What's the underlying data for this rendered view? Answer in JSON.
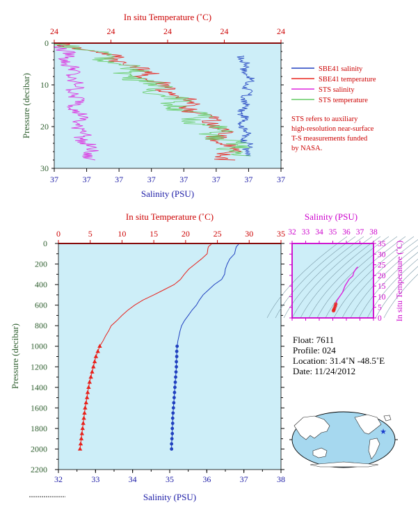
{
  "colors": {
    "panel_bg": "#cdeef8",
    "temperature": "#e8201a",
    "salinity": "#1f3fbf",
    "sts_salinity": "#dd22dd",
    "sts_temperature": "#66cc66",
    "temp_axis": "#cc0000",
    "sal_axis": "#1a1aa6",
    "pressure_axis": "#2e5e2e",
    "ts_axis": "#cc00cc"
  },
  "chart_data": [
    {
      "type": "line",
      "panel": "near-surface profile",
      "title": "",
      "top_axis_label": "In situ Temperature (˚C)",
      "top_ticks": [
        "24",
        "24",
        "24",
        "24",
        "24"
      ],
      "bottom_axis_label": "Salinity (PSU)",
      "bottom_ticks": [
        "37",
        "37",
        "37",
        "37",
        "37",
        "37",
        "37",
        "37"
      ],
      "ylabel": "Pressure (decibar)",
      "y_ticks": [
        0,
        10,
        20,
        30
      ],
      "ylim": [
        0,
        30
      ],
      "legend": [
        {
          "name": "SBE41 salinity",
          "color": "#1f3fbf"
        },
        {
          "name": "SBE41 temperature",
          "color": "#e8201a"
        },
        {
          "name": "STS salinity",
          "color": "#dd22dd"
        },
        {
          "name": "STS temperature",
          "color": "#66cc66"
        }
      ],
      "note": "STS refers to auxiliary high-resolution near-surface T-S measurements funded by NASA.",
      "series": [
        {
          "name": "SBE41 salinity",
          "x_frac": [
            0.82,
            0.85,
            0.82,
            0.85
          ],
          "y": [
            3.0,
            9.0,
            17.0,
            27.0
          ]
        },
        {
          "name": "SBE41 temperature",
          "x_frac": [
            0.02,
            0.28,
            0.5,
            0.7,
            0.75
          ],
          "y": [
            0,
            4.0,
            12.0,
            20.0,
            28.0
          ]
        },
        {
          "name": "STS salinity",
          "x_frac": [
            0.02,
            0.07,
            0.1,
            0.15
          ],
          "y": [
            0,
            8.0,
            20.0,
            28.0
          ]
        },
        {
          "name": "STS temperature",
          "x_frac": [
            0.02,
            0.2,
            0.45,
            0.65,
            0.8
          ],
          "y": [
            0,
            3.0,
            12.0,
            20.0,
            27.0
          ]
        }
      ]
    },
    {
      "type": "line",
      "panel": "full-depth profile",
      "title": "",
      "top_axis_label": "In situ Temperature (˚C)",
      "top_ticks": [
        "0",
        "5",
        "10",
        "15",
        "20",
        "25",
        "30",
        "35"
      ],
      "temperature_range": [
        0,
        35
      ],
      "bottom_axis_label": "Salinity (PSU)",
      "bottom_ticks": [
        "32",
        "33",
        "34",
        "35",
        "36",
        "37",
        "38"
      ],
      "salinity_range": [
        32,
        38
      ],
      "ylabel": "Pressure (decibar)",
      "y_ticks": [
        "0",
        "200",
        "400",
        "600",
        "800",
        "1000",
        "1200",
        "1400",
        "1600",
        "1800",
        "2000",
        "2200"
      ],
      "ylim": [
        0,
        2200
      ],
      "series": [
        {
          "name": "Temperature",
          "pressure": [
            0,
            10,
            30,
            50,
            100,
            150,
            200,
            250,
            300,
            350,
            400,
            450,
            500,
            550,
            600,
            650,
            700,
            750,
            800,
            850,
            900,
            950,
            1000,
            1050,
            1100,
            1150,
            1200,
            1250,
            1300,
            1350,
            1400,
            1450,
            1500,
            1550,
            1600,
            1650,
            1700,
            1750,
            1800,
            1850,
            1900,
            1950,
            2000
          ],
          "values": [
            24.0,
            24.0,
            23.6,
            23.5,
            23.4,
            22.5,
            21.5,
            20.5,
            19.8,
            19.2,
            18.2,
            16.6,
            15.0,
            13.3,
            12.0,
            10.9,
            10.0,
            9.2,
            8.3,
            7.9,
            7.4,
            7.0,
            6.5,
            6.2,
            5.9,
            5.7,
            5.5,
            5.3,
            5.1,
            4.9,
            4.75,
            4.6,
            4.5,
            4.35,
            4.2,
            4.1,
            4.0,
            3.9,
            3.8,
            3.7,
            3.6,
            3.5,
            3.4
          ]
        },
        {
          "name": "Salinity",
          "pressure": [
            0,
            10,
            30,
            50,
            100,
            150,
            200,
            250,
            300,
            350,
            400,
            450,
            500,
            550,
            600,
            650,
            700,
            750,
            800,
            850,
            900,
            950,
            1000,
            1050,
            1100,
            1150,
            1200,
            1250,
            1300,
            1350,
            1400,
            1450,
            1500,
            1550,
            1600,
            1650,
            1700,
            1750,
            1800,
            1850,
            1900,
            1950,
            2000
          ],
          "values": [
            36.85,
            36.85,
            36.8,
            36.78,
            36.75,
            36.62,
            36.55,
            36.5,
            36.48,
            36.4,
            36.2,
            36.05,
            35.9,
            35.8,
            35.72,
            35.6,
            35.5,
            35.4,
            35.32,
            35.28,
            35.25,
            35.22,
            35.2,
            35.19,
            35.19,
            35.18,
            35.18,
            35.17,
            35.16,
            35.15,
            35.14,
            35.13,
            35.12,
            35.11,
            35.1,
            35.09,
            35.08,
            35.08,
            35.07,
            35.07,
            35.06,
            35.05,
            35.05
          ]
        }
      ]
    },
    {
      "type": "scatter",
      "panel": "T-S diagram",
      "top_axis_label": "Salinity (PSU)",
      "x_ticks": [
        "32",
        "33",
        "34",
        "35",
        "36",
        "37",
        "38"
      ],
      "xlim": [
        32,
        38
      ],
      "right_axis_label": "In situ Temperature (˚C)",
      "y_ticks": [
        "0",
        "5",
        "10",
        "15",
        "20",
        "25",
        "30",
        "35"
      ],
      "ylim": [
        0,
        35
      ],
      "series": [
        {
          "name": "T-S",
          "salinity": [
            35.05,
            35.08,
            35.12,
            35.18,
            35.22,
            35.32,
            35.5,
            35.72,
            35.9,
            36.2,
            36.48,
            36.55,
            36.75,
            36.85
          ],
          "temperature": [
            3.4,
            3.8,
            4.5,
            5.5,
            6.5,
            8.3,
            10.0,
            12.0,
            15.0,
            18.2,
            19.8,
            21.5,
            23.4,
            24.0
          ]
        }
      ]
    }
  ],
  "float_info": {
    "float": "Float:  7611",
    "profile": "Profile:  024",
    "location": "Location:  31.4˚N  -48.5˚E",
    "date": "Date:  11/24/2012"
  },
  "map": {
    "marker": "star"
  }
}
